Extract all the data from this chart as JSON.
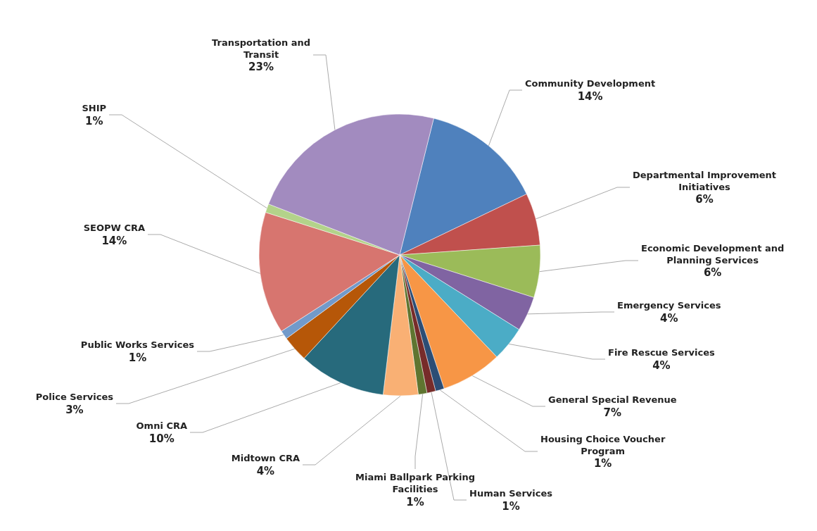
{
  "chart_data": {
    "type": "pie",
    "categories": [
      "Community Development",
      "Departmental Improvement Initiatives",
      "Economic Development and Planning Services",
      "Emergency Services",
      "Fire Rescue Services",
      "General Special Revenue",
      "Housing Choice Voucher Program",
      "Human Services",
      "Miami Ballpark Parking Facilities",
      "Midtown CRA",
      "Omni CRA",
      "Police Services",
      "Public Works Services",
      "SEOPW CRA",
      "SHIP",
      "Transportation and Transit"
    ],
    "values": [
      14,
      6,
      6,
      4,
      4,
      7,
      1,
      1,
      1,
      4,
      10,
      3,
      1,
      14,
      1,
      23
    ],
    "value_labels": [
      "14%",
      "6%",
      "6%",
      "4%",
      "4%",
      "7%",
      "1%",
      "1%",
      "1%",
      "4%",
      "10%",
      "3%",
      "1%",
      "14%",
      "1%",
      "23%"
    ],
    "colors": [
      "#4f81bd",
      "#c0504d",
      "#9bbb59",
      "#8064a2",
      "#4bacc6",
      "#f79646",
      "#2c4d75",
      "#772c2a",
      "#5f7530",
      "#f9b074",
      "#276a7c",
      "#b65708",
      "#729aca",
      "#d7756f",
      "#b3d38a",
      "#a28bbf"
    ],
    "legend": false
  }
}
